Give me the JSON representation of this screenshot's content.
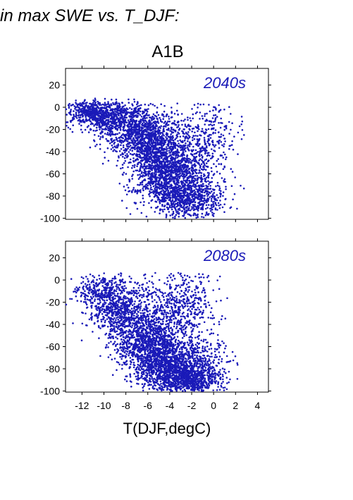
{
  "header": {
    "caption": "in max SWE vs. T_DJF:",
    "scenario": "A1B"
  },
  "chart_data": [
    {
      "type": "scatter",
      "title": "",
      "panel_label": "2040s",
      "xlabel": "",
      "ylabel": "",
      "xlim": [
        -13.5,
        5
      ],
      "ylim": [
        -101,
        35
      ],
      "yticks": [
        20,
        0,
        -20,
        -40,
        -60,
        -80,
        -100
      ],
      "xticks": [
        -12,
        -10,
        -8,
        -6,
        -4,
        -2,
        0,
        2,
        4
      ],
      "show_x_tick_labels": false,
      "marker_color": "#1a1ab8",
      "point_count": 4500,
      "clusters": [
        {
          "center": [
            -9.5,
            -8
          ],
          "spread": [
            1.6,
            7
          ],
          "weight": 0.16
        },
        {
          "center": [
            -7,
            -25
          ],
          "spread": [
            1.5,
            12
          ],
          "weight": 0.16
        },
        {
          "center": [
            -5,
            -45
          ],
          "spread": [
            1.4,
            18
          ],
          "weight": 0.24
        },
        {
          "center": [
            -3.5,
            -65
          ],
          "spread": [
            1.6,
            15
          ],
          "weight": 0.2
        },
        {
          "center": [
            -2,
            -82
          ],
          "spread": [
            1.5,
            9
          ],
          "weight": 0.12
        },
        {
          "center": [
            -1,
            -30
          ],
          "spread": [
            1.6,
            18
          ],
          "weight": 0.08
        },
        {
          "center": [
            -11.5,
            -3
          ],
          "spread": [
            0.9,
            4
          ],
          "weight": 0.04
        }
      ],
      "x_range": [
        -13.5,
        2.8
      ],
      "y_range": [
        -100,
        10
      ]
    },
    {
      "type": "scatter",
      "title": "",
      "panel_label": "2080s",
      "xlabel": "T(DJF,degC)",
      "ylabel": "",
      "xlim": [
        -13.5,
        5
      ],
      "ylim": [
        -101,
        35
      ],
      "yticks": [
        20,
        0,
        -20,
        -40,
        -60,
        -80,
        -100
      ],
      "xticks": [
        -12,
        -10,
        -8,
        -6,
        -4,
        -2,
        0,
        2,
        4
      ],
      "show_x_tick_labels": true,
      "marker_color": "#1a1ab8",
      "point_count": 4500,
      "clusters": [
        {
          "center": [
            -8.5,
            -25
          ],
          "spread": [
            1.4,
            14
          ],
          "weight": 0.16
        },
        {
          "center": [
            -6,
            -55
          ],
          "spread": [
            1.5,
            16
          ],
          "weight": 0.24
        },
        {
          "center": [
            -4,
            -75
          ],
          "spread": [
            1.6,
            14
          ],
          "weight": 0.26
        },
        {
          "center": [
            -2,
            -88
          ],
          "spread": [
            1.4,
            8
          ],
          "weight": 0.16
        },
        {
          "center": [
            -3,
            -20
          ],
          "spread": [
            1.6,
            16
          ],
          "weight": 0.1
        },
        {
          "center": [
            -10.5,
            -10
          ],
          "spread": [
            1.0,
            8
          ],
          "weight": 0.05
        },
        {
          "center": [
            -0.5,
            -70
          ],
          "spread": [
            1.2,
            15
          ],
          "weight": 0.03
        }
      ],
      "x_range": [
        -13.5,
        2.5
      ],
      "y_range": [
        -100,
        18
      ]
    }
  ]
}
